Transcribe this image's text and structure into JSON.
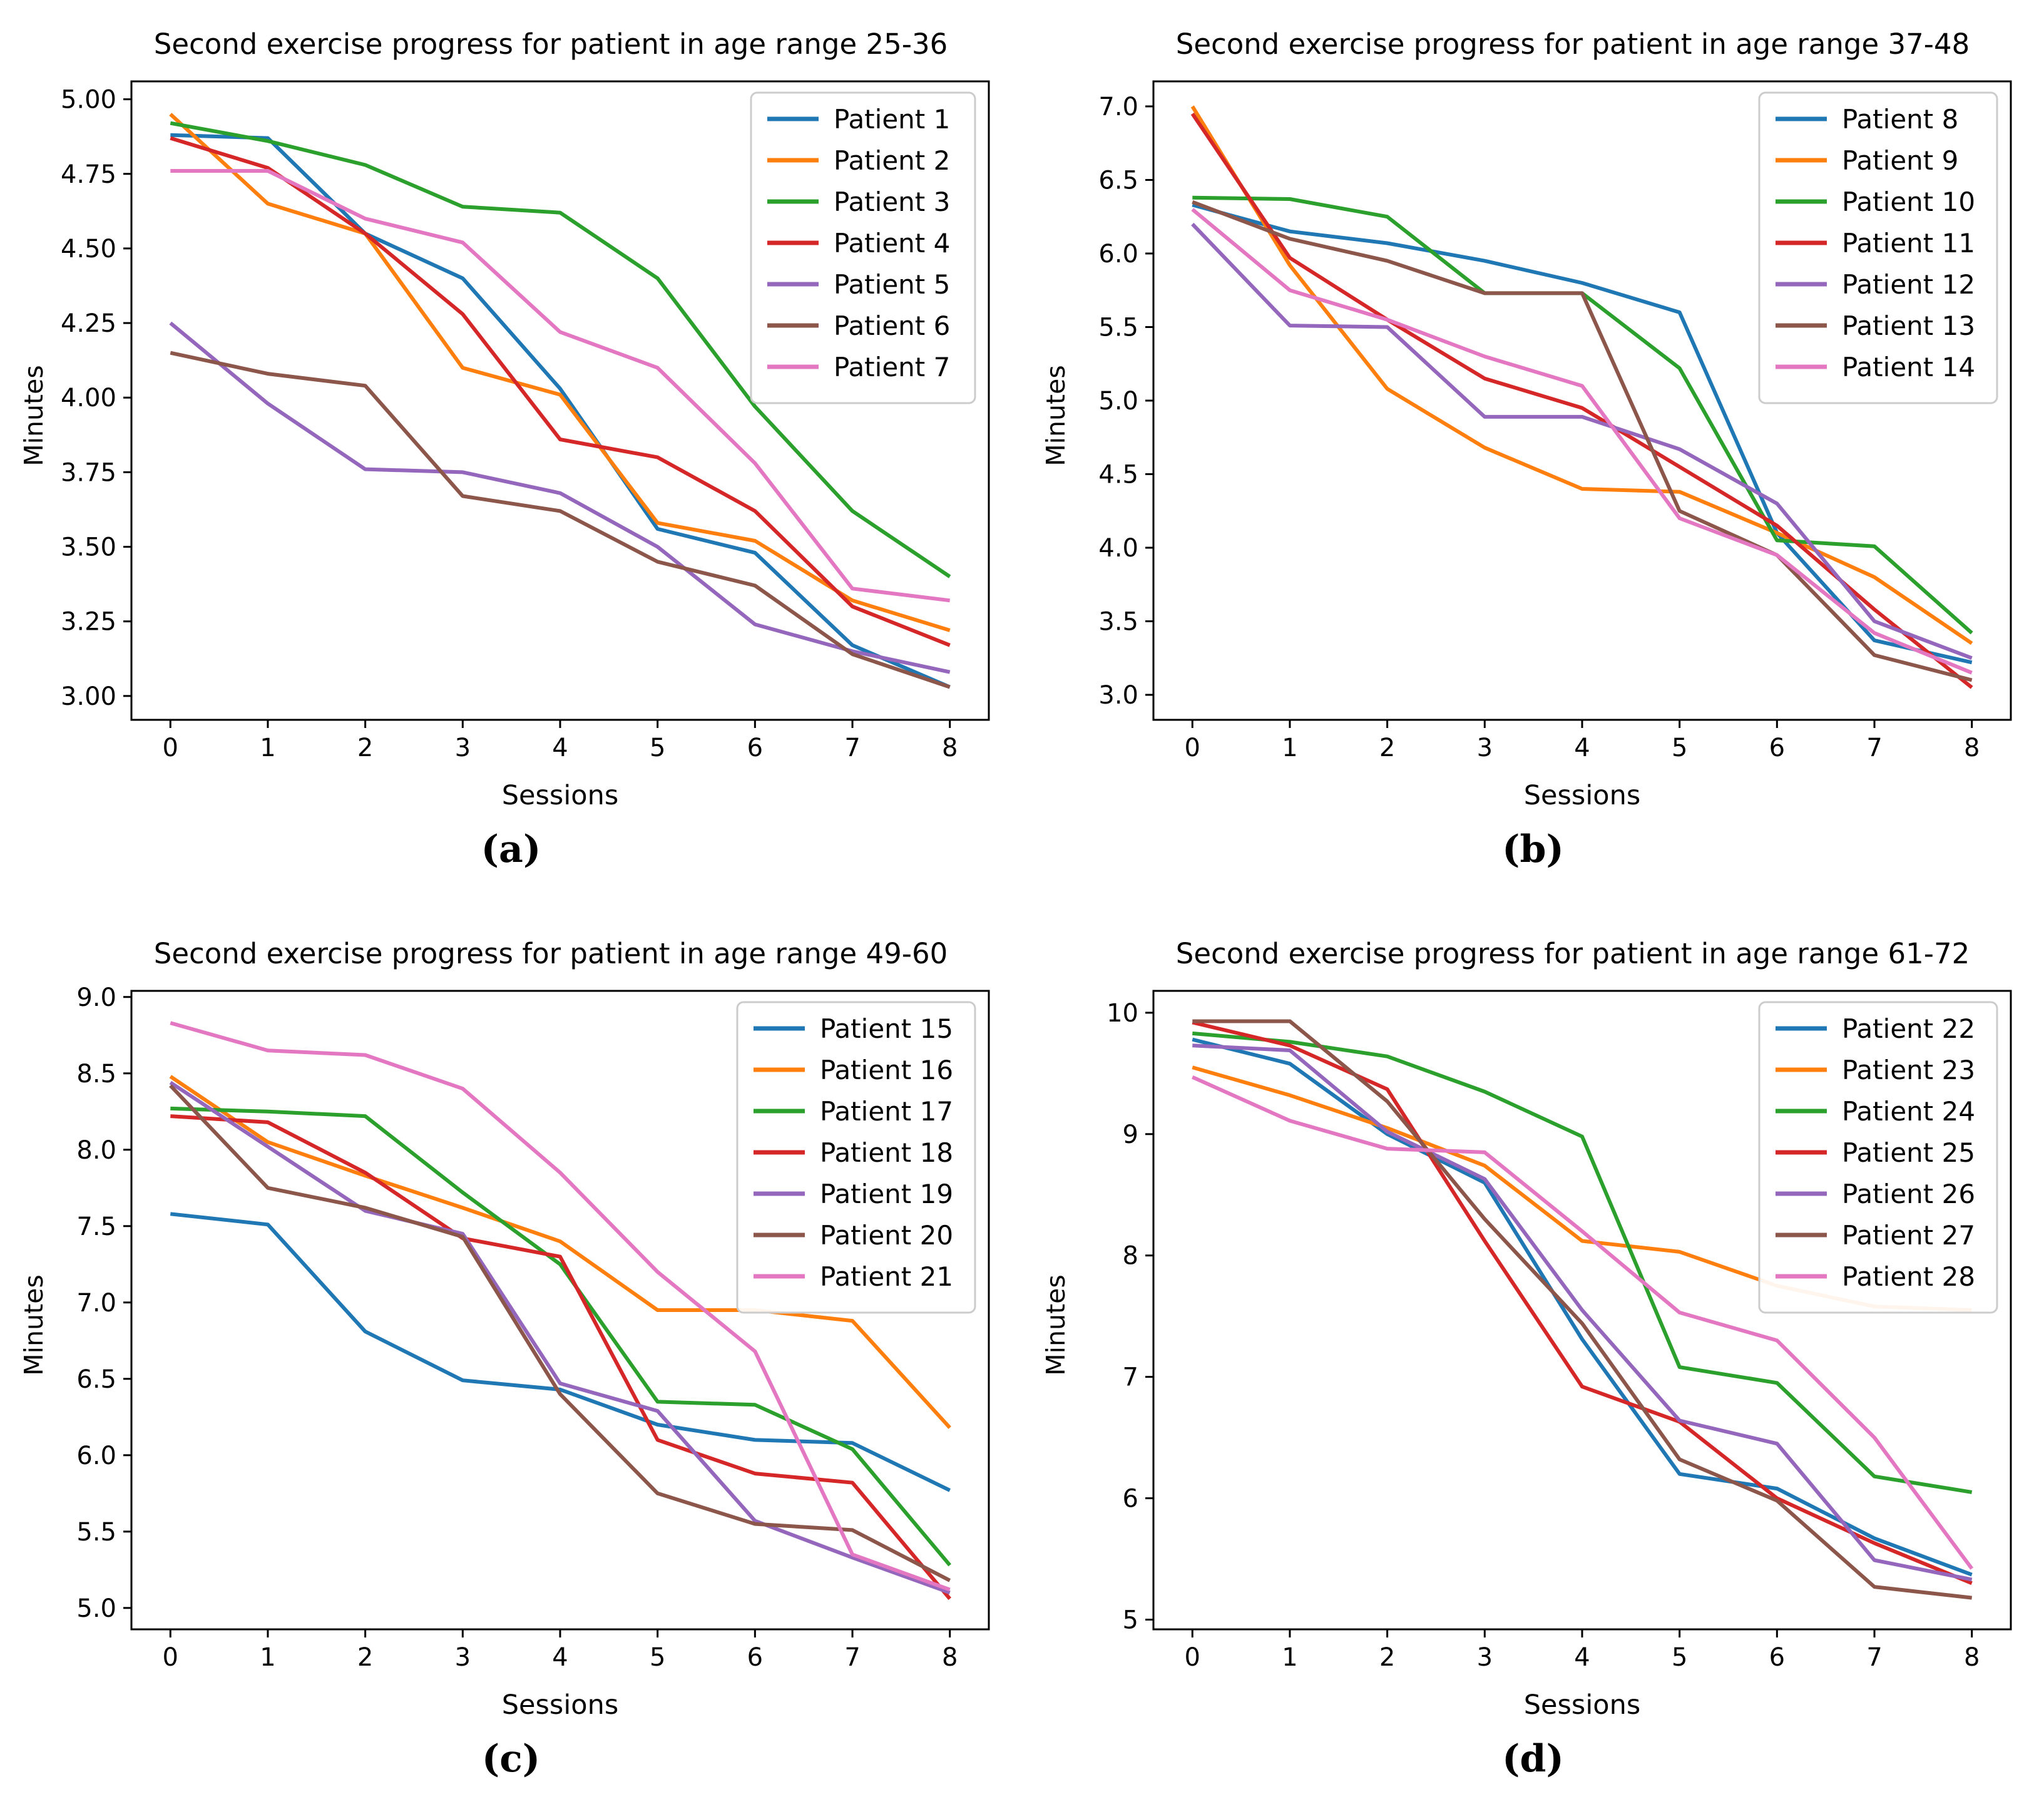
{
  "page": {
    "background": "#ffffff",
    "axis_color": "#000000",
    "figure": "2x2 line chart panel"
  },
  "chart_data": [
    {
      "type": "line",
      "fig_label": "(a)",
      "title": "Second exercise progress for patient in age range 25-36",
      "xlabel": "Sessions",
      "ylabel": "Minutes",
      "x": [
        0,
        1,
        2,
        3,
        4,
        5,
        6,
        7,
        8
      ],
      "xtick_labels": [
        "0",
        "1",
        "2",
        "3",
        "4",
        "5",
        "6",
        "7",
        "8"
      ],
      "xlim": [
        -0.4,
        8.4
      ],
      "ylim": [
        2.92,
        5.06
      ],
      "ytick_values": [
        3.0,
        3.25,
        3.5,
        3.75,
        4.0,
        4.25,
        4.5,
        4.75,
        5.0
      ],
      "ytick_labels": [
        "3.00",
        "3.25",
        "3.50",
        "3.75",
        "4.00",
        "4.25",
        "4.50",
        "4.75",
        "5.00"
      ],
      "grid": false,
      "legend_position": "upper right",
      "series": [
        {
          "name": "Patient 1",
          "color": "#1f77b4",
          "values": [
            4.88,
            4.87,
            4.55,
            4.4,
            4.03,
            3.56,
            3.48,
            3.17,
            3.03
          ]
        },
        {
          "name": "Patient 2",
          "color": "#ff7f0e",
          "values": [
            4.95,
            4.65,
            4.55,
            4.1,
            4.01,
            3.58,
            3.52,
            3.32,
            3.22
          ]
        },
        {
          "name": "Patient 3",
          "color": "#2ca02c",
          "values": [
            4.92,
            4.86,
            4.78,
            4.64,
            4.62,
            4.4,
            3.97,
            3.62,
            3.4
          ]
        },
        {
          "name": "Patient 4",
          "color": "#d62728",
          "values": [
            4.87,
            4.77,
            4.55,
            4.28,
            3.86,
            3.8,
            3.62,
            3.3,
            3.17
          ]
        },
        {
          "name": "Patient 5",
          "color": "#9467bd",
          "values": [
            4.25,
            3.98,
            3.76,
            3.75,
            3.68,
            3.5,
            3.24,
            3.15,
            3.08
          ]
        },
        {
          "name": "Patient 6",
          "color": "#8c564b",
          "values": [
            4.15,
            4.08,
            4.04,
            3.67,
            3.62,
            3.45,
            3.37,
            3.14,
            3.03
          ]
        },
        {
          "name": "Patient 7",
          "color": "#e377c2",
          "values": [
            4.76,
            4.76,
            4.6,
            4.52,
            4.22,
            4.1,
            3.78,
            3.36,
            3.32
          ]
        }
      ]
    },
    {
      "type": "line",
      "fig_label": "(b)",
      "title": "Second exercise progress for patient in age range 37-48",
      "xlabel": "Sessions",
      "ylabel": "Minutes",
      "x": [
        0,
        1,
        2,
        3,
        4,
        5,
        6,
        7,
        8
      ],
      "xtick_labels": [
        "0",
        "1",
        "2",
        "3",
        "4",
        "5",
        "6",
        "7",
        "8"
      ],
      "xlim": [
        -0.4,
        8.4
      ],
      "ylim": [
        2.83,
        7.17
      ],
      "ytick_values": [
        3.0,
        3.5,
        4.0,
        4.5,
        5.0,
        5.5,
        6.0,
        6.5,
        7.0
      ],
      "ytick_labels": [
        "3.0",
        "3.5",
        "4.0",
        "4.5",
        "5.0",
        "5.5",
        "6.0",
        "6.5",
        "7.0"
      ],
      "grid": false,
      "legend_position": "upper right",
      "series": [
        {
          "name": "Patient 8",
          "color": "#1f77b4",
          "values": [
            6.33,
            6.15,
            6.07,
            5.95,
            5.8,
            5.6,
            4.1,
            3.37,
            3.22
          ]
        },
        {
          "name": "Patient 9",
          "color": "#ff7f0e",
          "values": [
            7.0,
            5.92,
            5.08,
            4.68,
            4.4,
            4.38,
            4.1,
            3.8,
            3.35
          ]
        },
        {
          "name": "Patient 10",
          "color": "#2ca02c",
          "values": [
            6.38,
            6.37,
            6.25,
            5.73,
            5.73,
            5.22,
            4.05,
            4.01,
            3.42
          ]
        },
        {
          "name": "Patient 11",
          "color": "#d62728",
          "values": [
            6.95,
            5.97,
            5.55,
            5.15,
            4.95,
            4.55,
            4.15,
            3.58,
            3.05
          ]
        },
        {
          "name": "Patient 12",
          "color": "#9467bd",
          "values": [
            6.2,
            5.51,
            5.5,
            4.89,
            4.89,
            4.67,
            4.3,
            3.5,
            3.25
          ]
        },
        {
          "name": "Patient 13",
          "color": "#8c564b",
          "values": [
            6.35,
            6.1,
            5.95,
            5.73,
            5.73,
            4.25,
            3.95,
            3.27,
            3.1
          ]
        },
        {
          "name": "Patient 14",
          "color": "#e377c2",
          "values": [
            6.3,
            5.75,
            5.55,
            5.3,
            5.1,
            4.2,
            3.95,
            3.42,
            3.15
          ]
        }
      ]
    },
    {
      "type": "line",
      "fig_label": "(c)",
      "title": "Second exercise progress for patient in age range 49-60",
      "xlabel": "Sessions",
      "ylabel": "Minutes",
      "x": [
        0,
        1,
        2,
        3,
        4,
        5,
        6,
        7,
        8
      ],
      "xtick_labels": [
        "0",
        "1",
        "2",
        "3",
        "4",
        "5",
        "6",
        "7",
        "8"
      ],
      "xlim": [
        -0.4,
        8.4
      ],
      "ylim": [
        4.86,
        9.04
      ],
      "ytick_values": [
        5.0,
        5.5,
        6.0,
        6.5,
        7.0,
        7.5,
        8.0,
        8.5,
        9.0
      ],
      "ytick_labels": [
        "5.0",
        "5.5",
        "6.0",
        "6.5",
        "7.0",
        "7.5",
        "8.0",
        "8.5",
        "9.0"
      ],
      "grid": false,
      "legend_position": "upper right",
      "series": [
        {
          "name": "Patient 15",
          "color": "#1f77b4",
          "values": [
            7.58,
            7.51,
            6.81,
            6.49,
            6.43,
            6.2,
            6.1,
            6.08,
            5.77
          ]
        },
        {
          "name": "Patient 16",
          "color": "#ff7f0e",
          "values": [
            8.48,
            8.05,
            7.83,
            7.62,
            7.4,
            6.95,
            6.95,
            6.88,
            6.18
          ]
        },
        {
          "name": "Patient 17",
          "color": "#2ca02c",
          "values": [
            8.27,
            8.25,
            8.22,
            7.72,
            7.25,
            6.35,
            6.33,
            6.04,
            5.28
          ]
        },
        {
          "name": "Patient 18",
          "color": "#d62728",
          "values": [
            8.22,
            8.18,
            7.85,
            7.42,
            7.3,
            6.1,
            5.88,
            5.82,
            5.06
          ]
        },
        {
          "name": "Patient 19",
          "color": "#9467bd",
          "values": [
            8.44,
            8.02,
            7.6,
            7.45,
            6.47,
            6.29,
            5.57,
            5.33,
            5.1
          ]
        },
        {
          "name": "Patient 20",
          "color": "#8c564b",
          "values": [
            8.42,
            7.75,
            7.62,
            7.43,
            6.4,
            5.75,
            5.55,
            5.51,
            5.18
          ]
        },
        {
          "name": "Patient 21",
          "color": "#e377c2",
          "values": [
            8.83,
            8.65,
            8.62,
            8.4,
            7.85,
            7.2,
            6.68,
            5.35,
            5.12
          ]
        }
      ]
    },
    {
      "type": "line",
      "fig_label": "(d)",
      "title": "Second exercise progress for patient in age range 61-72",
      "xlabel": "Sessions",
      "ylabel": "Minutes",
      "x": [
        0,
        1,
        2,
        3,
        4,
        5,
        6,
        7,
        8
      ],
      "xtick_labels": [
        "0",
        "1",
        "2",
        "3",
        "4",
        "5",
        "6",
        "7",
        "8"
      ],
      "xlim": [
        -0.4,
        8.4
      ],
      "ylim": [
        4.92,
        10.18
      ],
      "ytick_values": [
        5,
        6,
        7,
        8,
        9,
        10
      ],
      "ytick_labels": [
        "5",
        "6",
        "7",
        "8",
        "9",
        "10"
      ],
      "grid": false,
      "legend_position": "upper right",
      "series": [
        {
          "name": "Patient 22",
          "color": "#1f77b4",
          "values": [
            9.78,
            9.58,
            9.0,
            8.6,
            7.31,
            6.2,
            6.08,
            5.67,
            5.37
          ]
        },
        {
          "name": "Patient 23",
          "color": "#ff7f0e",
          "values": [
            9.55,
            9.32,
            9.05,
            8.74,
            8.12,
            8.03,
            7.75,
            7.58,
            7.55
          ]
        },
        {
          "name": "Patient 24",
          "color": "#2ca02c",
          "values": [
            9.83,
            9.76,
            9.64,
            9.35,
            8.98,
            7.08,
            6.95,
            6.18,
            6.05
          ]
        },
        {
          "name": "Patient 25",
          "color": "#d62728",
          "values": [
            9.92,
            9.73,
            9.37,
            8.12,
            6.92,
            6.63,
            6.0,
            5.63,
            5.3
          ]
        },
        {
          "name": "Patient 26",
          "color": "#9467bd",
          "values": [
            9.73,
            9.69,
            9.02,
            8.63,
            7.55,
            6.64,
            6.45,
            5.49,
            5.33
          ]
        },
        {
          "name": "Patient 27",
          "color": "#8c564b",
          "values": [
            9.93,
            9.93,
            9.27,
            8.3,
            7.44,
            6.32,
            5.98,
            5.27,
            5.18
          ]
        },
        {
          "name": "Patient 28",
          "color": "#e377c2",
          "values": [
            9.47,
            9.11,
            8.88,
            8.85,
            8.2,
            7.53,
            7.3,
            6.5,
            5.42
          ]
        }
      ]
    }
  ]
}
